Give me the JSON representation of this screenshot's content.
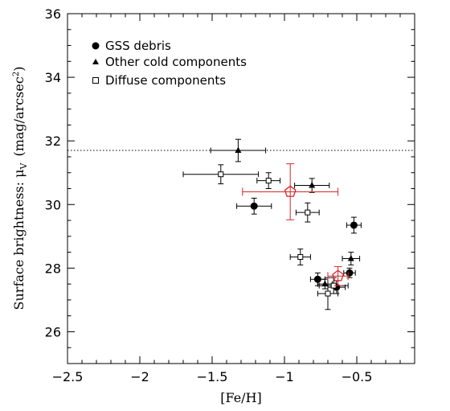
{
  "chart_data": {
    "type": "scatter",
    "xlabel": "[Fe/H]",
    "ylabel": "Surface brightness: μ",
    "ylabel_sub": "V",
    "ylabel_units_prefix": "(mag/arcsec",
    "ylabel_units_sup": "2",
    "ylabel_units_suffix": ")",
    "xlim": [
      -2.5,
      -0.1
    ],
    "ylim": [
      25,
      36
    ],
    "x_ticks": [
      -2.5,
      -2,
      -1.5,
      -1,
      -0.5
    ],
    "x_tick_labels": [
      "−2.5",
      "−2",
      "−1.5",
      "−1",
      "−0.5"
    ],
    "y_ticks": [
      26,
      28,
      30,
      32,
      34,
      36
    ],
    "y_tick_labels": [
      "26",
      "28",
      "30",
      "32",
      "34",
      "36"
    ],
    "legend_position": "top-left",
    "reference_line": {
      "y": 31.7,
      "style": "dotted"
    },
    "series": [
      {
        "name": "GSS debris",
        "marker": "circle",
        "points": [
          {
            "x": -1.21,
            "y": 29.95,
            "xerr": 0.12,
            "yerr": 0.25
          },
          {
            "x": -0.52,
            "y": 29.35,
            "xerr": 0.05,
            "yerr": 0.25
          },
          {
            "x": -0.77,
            "y": 27.65,
            "xerr": 0.05,
            "yerr": 0.2
          },
          {
            "x": -0.64,
            "y": 27.4,
            "xerr": 0.06,
            "yerr": 0.2
          },
          {
            "x": -0.55,
            "y": 27.85,
            "xerr": 0.04,
            "yerr": 0.15
          }
        ]
      },
      {
        "name": "Other cold components",
        "marker": "triangle",
        "points": [
          {
            "x": -1.32,
            "y": 31.7,
            "xerr": 0.19,
            "yerr": 0.35
          },
          {
            "x": -0.81,
            "y": 30.6,
            "xerr": 0.12,
            "yerr": 0.22
          },
          {
            "x": -0.54,
            "y": 28.3,
            "xerr": 0.06,
            "yerr": 0.2
          },
          {
            "x": -0.72,
            "y": 27.5,
            "xerr": 0.05,
            "yerr": 0.15
          }
        ]
      },
      {
        "name": "Diffuse components",
        "marker": "open-square",
        "points": [
          {
            "x": -1.44,
            "y": 30.95,
            "xerr": 0.26,
            "yerr": 0.3
          },
          {
            "x": -1.11,
            "y": 30.75,
            "xerr": 0.08,
            "yerr": 0.25
          },
          {
            "x": -0.84,
            "y": 29.75,
            "xerr": 0.08,
            "yerr": 0.3
          },
          {
            "x": -0.89,
            "y": 28.35,
            "xerr": 0.07,
            "yerr": 0.25
          },
          {
            "x": -0.7,
            "y": 27.2,
            "xerr": 0.07,
            "yerr": 0.5
          },
          {
            "x": -0.66,
            "y": 27.45,
            "xerr": 0.1,
            "yerr": 0.25
          }
        ]
      },
      {
        "marker": "red-pentagon",
        "color": "#d62728",
        "points": [
          {
            "x": -0.96,
            "y": 30.4,
            "xerr": 0.33,
            "yerr": 0.88
          },
          {
            "x": -0.63,
            "y": 27.75,
            "xerr": 0.07,
            "yerr": 0.3
          }
        ]
      }
    ]
  }
}
